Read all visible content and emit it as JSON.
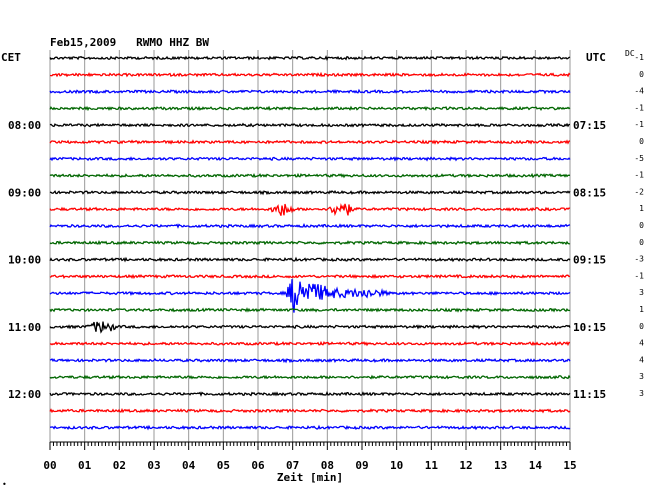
{
  "chart_data": {
    "type": "line",
    "title": "Feb15,2009   RWMO HHZ BW",
    "xlabel": "Zeit [min]",
    "left_label": "CET",
    "right_label": "UTC",
    "dc_label": "DC",
    "x_ticks": [
      "00",
      "01",
      "02",
      "03",
      "04",
      "05",
      "06",
      "07",
      "08",
      "09",
      "10",
      "11",
      "12",
      "13",
      "14",
      "15"
    ],
    "xlim": [
      0,
      15
    ],
    "row_minutes": 15,
    "cet_labels": [
      {
        "row": 4,
        "text": "08:00"
      },
      {
        "row": 8,
        "text": "09:00"
      },
      {
        "row": 12,
        "text": "10:00"
      },
      {
        "row": 16,
        "text": "11:00"
      },
      {
        "row": 20,
        "text": "12:00"
      }
    ],
    "utc_labels": [
      {
        "row": 4,
        "text": "07:15"
      },
      {
        "row": 8,
        "text": "08:15"
      },
      {
        "row": 12,
        "text": "09:15"
      },
      {
        "row": 16,
        "text": "10:15"
      },
      {
        "row": 20,
        "text": "11:15"
      }
    ],
    "dc_offsets": [
      "-1",
      "0",
      "-4",
      "-1",
      "-1",
      "0",
      "-5",
      "-1",
      "-2",
      "1",
      "0",
      "0",
      "-3",
      "-1",
      "3",
      "1",
      "0",
      "4",
      "4",
      "3",
      "3"
    ],
    "trace_colors": [
      "#000000",
      "#ff0000",
      "#0000ff",
      "#006600"
    ],
    "traces": 23,
    "events": [
      {
        "trace": 9,
        "x_start": 6.3,
        "x_end": 7.1,
        "peak": 0.45,
        "kind": "burst"
      },
      {
        "trace": 9,
        "x_start": 8.0,
        "x_end": 8.8,
        "peak": 0.55,
        "kind": "burst"
      },
      {
        "trace": 14,
        "x_start": 6.8,
        "x_end": 10.8,
        "peak": 1.0,
        "kind": "earthquake"
      },
      {
        "trace": 16,
        "x_start": 1.0,
        "x_end": 2.0,
        "peak": 0.4,
        "kind": "burst"
      }
    ]
  }
}
